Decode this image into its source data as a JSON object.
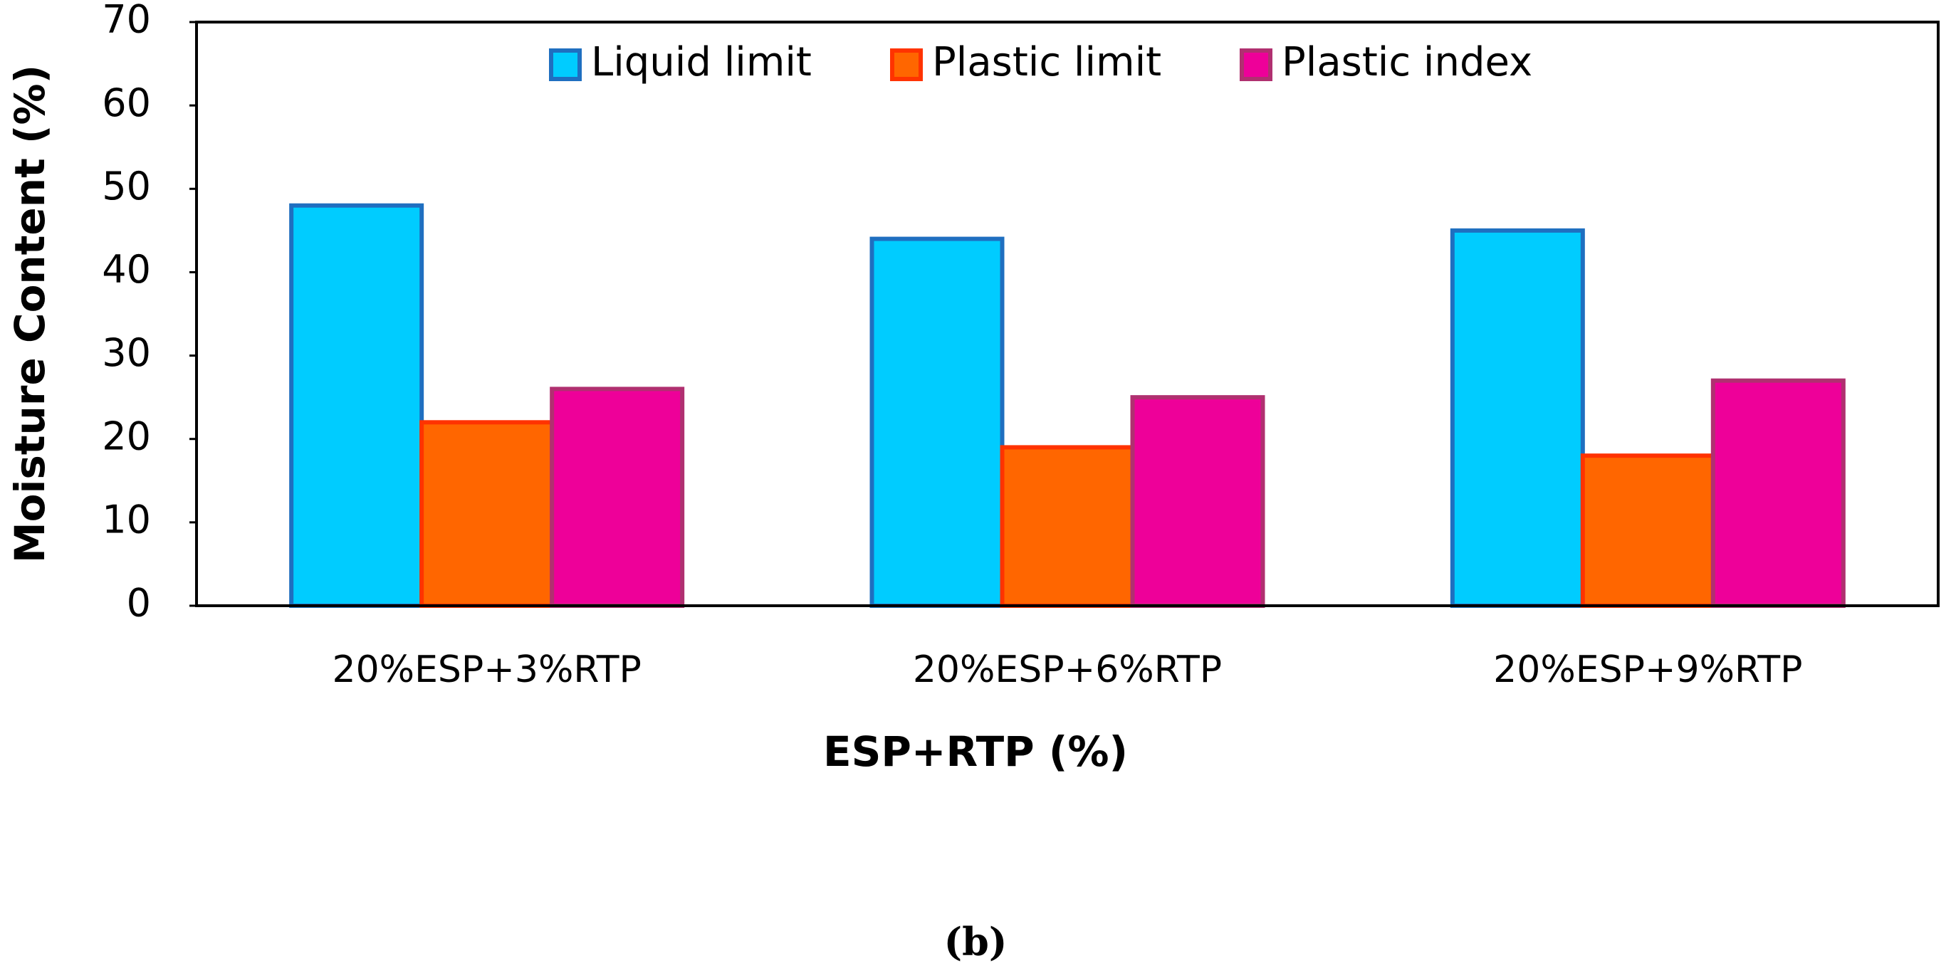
{
  "chart_data": {
    "type": "bar",
    "xlabel": "ESP+RTP (%)",
    "ylabel": "Moisture Content (%)",
    "caption": "(b)",
    "categories": [
      "20%ESP+3%RTP",
      "20%ESP+6%RTP",
      "20%ESP+9%RTP"
    ],
    "series": [
      {
        "name": "Liquid limit",
        "color": "#00ccff",
        "edgecolor": "#1f6fc0",
        "values": [
          48,
          44,
          45
        ]
      },
      {
        "name": "Plastic limit",
        "color": "#ff6600",
        "edgecolor": "#ff3300",
        "values": [
          22,
          19,
          18
        ]
      },
      {
        "name": "Plastic index",
        "color": "#ee0099",
        "edgecolor": "#b03070",
        "values": [
          26,
          25,
          27
        ]
      }
    ],
    "ylim": [
      0,
      70
    ],
    "yticks": [
      0,
      10,
      20,
      30,
      40,
      50,
      60,
      70
    ],
    "legend": "upper center"
  }
}
